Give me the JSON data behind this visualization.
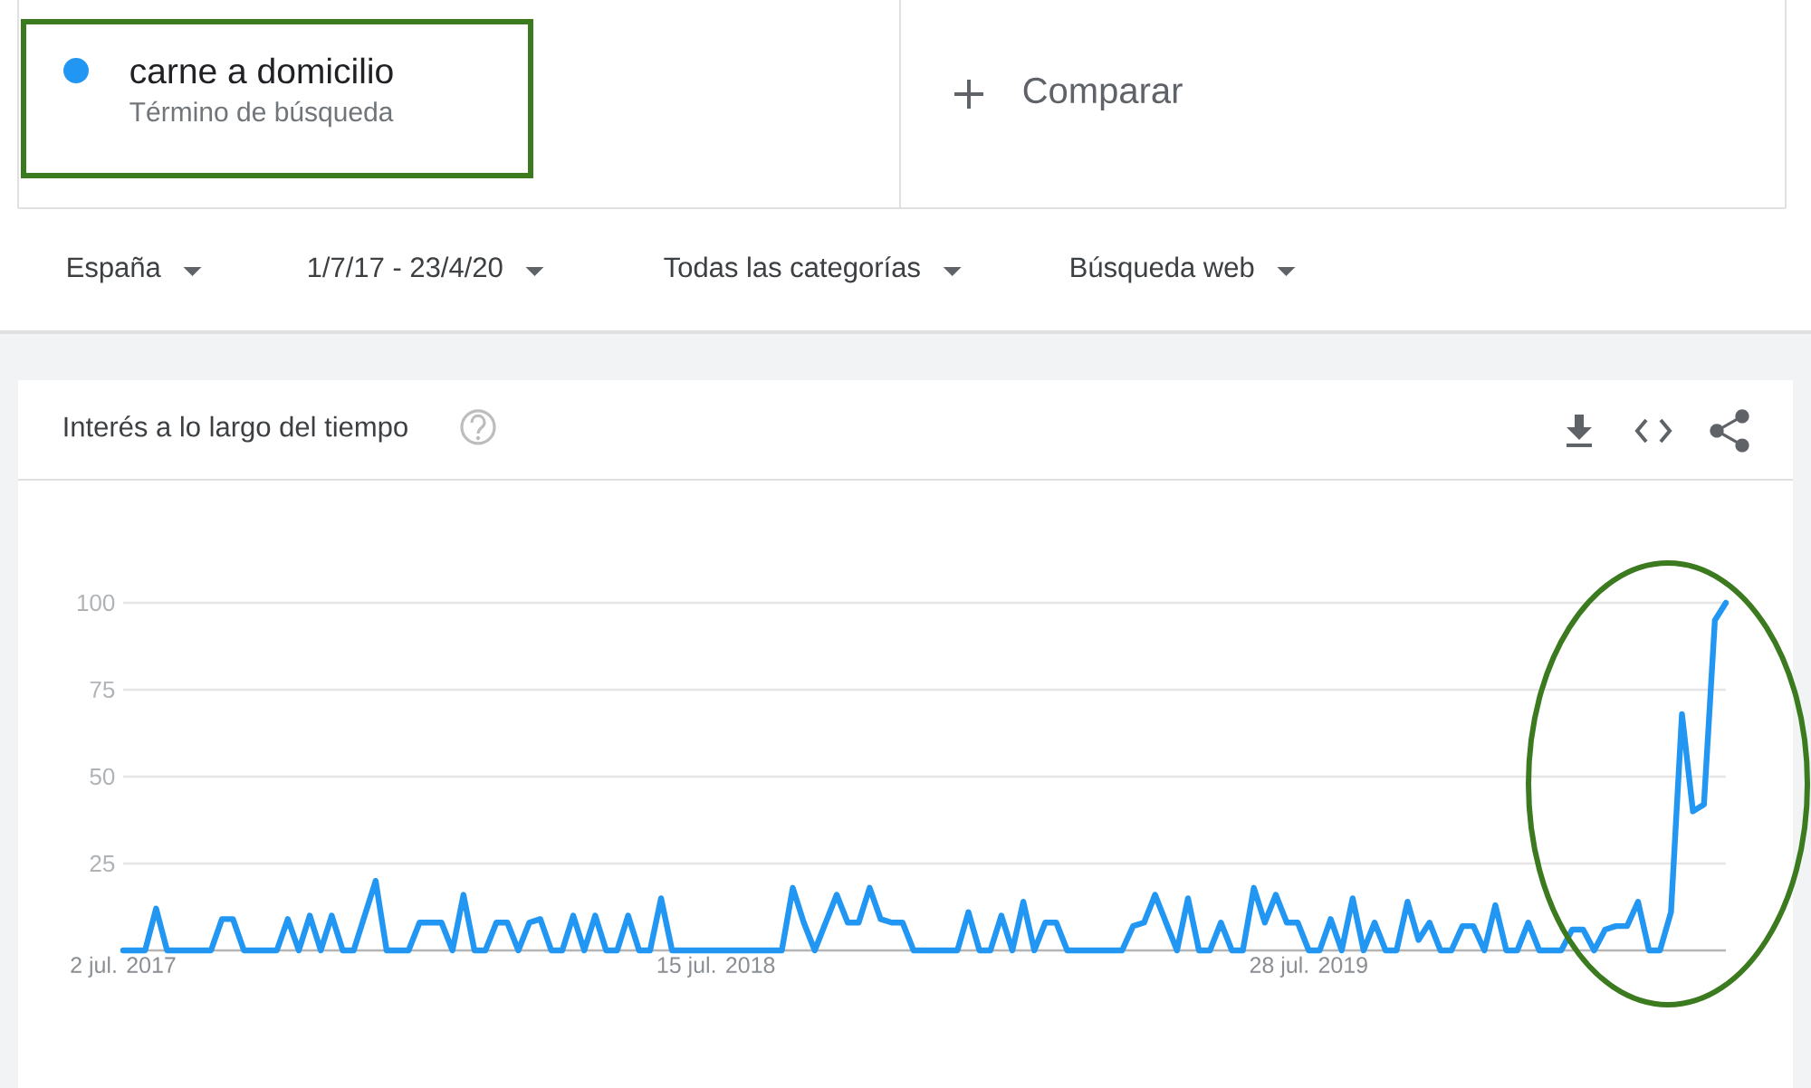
{
  "chart_data": {
    "type": "line",
    "title": "Interés a lo largo del tiempo",
    "annotations": [
      "Término de búsqueda",
      "Comparar",
      "España",
      "1/7/17 - 23/4/20",
      "Todas las categorías",
      "Búsqueda web"
    ],
    "categories": [
      "2 jul. 2017",
      null,
      null,
      null,
      null,
      null,
      null,
      null,
      null,
      null,
      null,
      null,
      null,
      null,
      null,
      null,
      null,
      null,
      null,
      null,
      null,
      null,
      null,
      null,
      null,
      null,
      null,
      null,
      null,
      null,
      null,
      null,
      null,
      null,
      null,
      null,
      null,
      null,
      null,
      null,
      null,
      null,
      null,
      null,
      null,
      null,
      null,
      null,
      null,
      null,
      null,
      null,
      null,
      null,
      "15 jul. 2018",
      null,
      null,
      null,
      null,
      null,
      null,
      null,
      null,
      null,
      null,
      null,
      null,
      null,
      null,
      null,
      null,
      null,
      null,
      null,
      null,
      null,
      null,
      null,
      null,
      null,
      null,
      null,
      null,
      null,
      null,
      null,
      null,
      null,
      null,
      null,
      null,
      null,
      null,
      null,
      null,
      null,
      null,
      null,
      null,
      null,
      null,
      null,
      null,
      null,
      null,
      null,
      null,
      null,
      "28 jul. 2019",
      null,
      null,
      null,
      null,
      null,
      null,
      null,
      null,
      null,
      null,
      null,
      null,
      null,
      null,
      null,
      null,
      null,
      null,
      null,
      null,
      null,
      null,
      null,
      null,
      null,
      null,
      null,
      null,
      null,
      null,
      null,
      null,
      null,
      null,
      null,
      null,
      null,
      null
    ],
    "series": [
      {
        "name": "carne a domicilio",
        "color": "#2196f3",
        "values": [
          0,
          0,
          0,
          12,
          0,
          0,
          0,
          0,
          0,
          9,
          9,
          0,
          0,
          0,
          0,
          9,
          0,
          10,
          0,
          10,
          0,
          0,
          10,
          20,
          0,
          0,
          0,
          8,
          8,
          8,
          0,
          16,
          0,
          0,
          8,
          8,
          0,
          8,
          9,
          0,
          0,
          10,
          0,
          10,
          0,
          0,
          10,
          0,
          0,
          15,
          0,
          0,
          0,
          0,
          0,
          0,
          0,
          0,
          0,
          0,
          0,
          18,
          8,
          0,
          8,
          16,
          8,
          8,
          18,
          9,
          8,
          8,
          0,
          0,
          0,
          0,
          0,
          11,
          0,
          0,
          10,
          0,
          14,
          0,
          8,
          8,
          0,
          0,
          0,
          0,
          0,
          0,
          7,
          8,
          16,
          8,
          0,
          15,
          0,
          0,
          8,
          0,
          0,
          18,
          8,
          16,
          8,
          8,
          0,
          0,
          9,
          0,
          15,
          0,
          8,
          0,
          0,
          14,
          3,
          8,
          0,
          0,
          7,
          7,
          0,
          13,
          0,
          0,
          8,
          0,
          0,
          0,
          6,
          6,
          0,
          6,
          7,
          7,
          14,
          0,
          0,
          11,
          68,
          40,
          42,
          95,
          100
        ]
      }
    ],
    "ylim": [
      0,
      100
    ],
    "yticks": [
      25,
      50,
      75,
      100
    ],
    "grid": "y",
    "legend": "top left",
    "line_style": "solid"
  }
}
